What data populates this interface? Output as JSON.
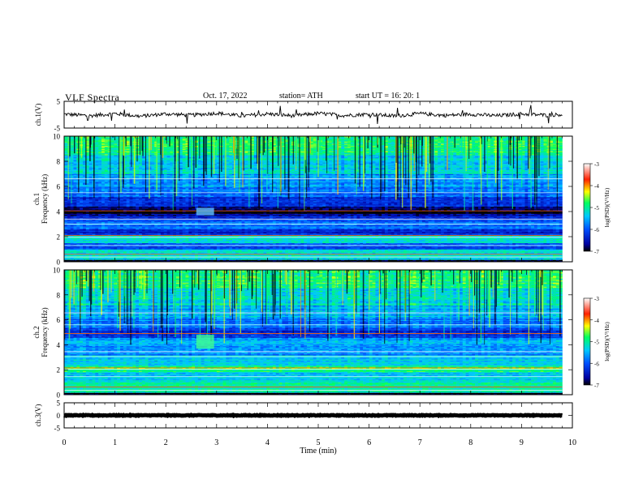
{
  "header": {
    "title": "VLF  Spectra",
    "date": "Oct. 17, 2022",
    "station": "station= ATH",
    "start": "start  UT  =    16: 20: 1"
  },
  "chart_data": [
    {
      "type": "line",
      "panel": "ch1-waveform",
      "ylabel": "ch.1(V)",
      "ylim": [
        -5,
        5
      ],
      "yticks": [
        "5",
        "-5"
      ],
      "xlim": [
        0,
        10
      ],
      "approx_level": 0,
      "sampled": [
        [
          0,
          0.2
        ],
        [
          0.5,
          -0.4
        ],
        [
          1,
          0.4
        ],
        [
          1.5,
          -0.6
        ],
        [
          2,
          0.3
        ],
        [
          2.5,
          -0.2
        ],
        [
          3,
          0.6
        ],
        [
          3.5,
          -0.5
        ],
        [
          4,
          0.3
        ],
        [
          4.5,
          -0.4
        ],
        [
          5,
          0.5
        ],
        [
          5.5,
          -0.3
        ],
        [
          6,
          0.2
        ],
        [
          6.5,
          -0.5
        ],
        [
          7,
          0.4
        ],
        [
          7.5,
          -0.3
        ],
        [
          8,
          0.2
        ],
        [
          8.5,
          -0.4
        ],
        [
          9,
          0.3
        ],
        [
          9.5,
          -0.2
        ],
        [
          9.8,
          0.1
        ]
      ]
    },
    {
      "type": "heatmap",
      "panel": "ch1-spectrogram",
      "ylabel": "ch.1\nFrequency  (kHz)",
      "yticks": [
        "0",
        "2",
        "4",
        "6",
        "8",
        "10"
      ],
      "ylim": [
        0,
        10
      ],
      "xlim": [
        0,
        10
      ],
      "data_extent_x": [
        0,
        9.8
      ],
      "colorbar": {
        "label": "log(PSD)(V²/Hz)",
        "ticks": [
          "-3",
          "-4",
          "-5",
          "-6",
          "-7"
        ],
        "range": [
          -7,
          -3
        ]
      },
      "bands": [
        {
          "f": [
            0,
            0.2
          ],
          "level": -7
        },
        {
          "f": [
            0.2,
            1.0
          ],
          "level": -5.2
        },
        {
          "f": [
            1.0,
            1.5
          ],
          "level": -6.0
        },
        {
          "f": [
            1.5,
            2.1
          ],
          "level": -5.3
        },
        {
          "f": [
            2.1,
            2.6
          ],
          "level": -6.3
        },
        {
          "f": [
            2.6,
            3.4
          ],
          "level": -5.9
        },
        {
          "f": [
            3.4,
            3.8
          ],
          "level": -6.5
        },
        {
          "f": [
            3.8,
            4.4
          ],
          "level": -6.9
        },
        {
          "f": [
            4.4,
            5.2
          ],
          "level": -6.3
        },
        {
          "f": [
            5.2,
            6.0
          ],
          "level": -5.9
        },
        {
          "f": [
            6.0,
            7.0
          ],
          "level": -5.6
        },
        {
          "f": [
            7.0,
            8.5
          ],
          "level": -5.3
        },
        {
          "f": [
            8.5,
            10.0
          ],
          "level": -4.9
        }
      ]
    },
    {
      "type": "heatmap",
      "panel": "ch2-spectrogram",
      "ylabel": "ch.2\nFrequency  (kHz)",
      "yticks": [
        "0",
        "2",
        "4",
        "6",
        "8",
        "10"
      ],
      "ylim": [
        0,
        10
      ],
      "xlim": [
        0,
        10
      ],
      "data_extent_x": [
        0,
        9.8
      ],
      "colorbar": {
        "label": "log(PSD)(V²/Hz)",
        "ticks": [
          "-3",
          "-4",
          "-5",
          "-6",
          "-7"
        ],
        "range": [
          -7,
          -3
        ]
      },
      "bands": [
        {
          "f": [
            0,
            0.2
          ],
          "level": -7
        },
        {
          "f": [
            0.2,
            1.2
          ],
          "level": -5.1
        },
        {
          "f": [
            1.2,
            1.8
          ],
          "level": -5.4
        },
        {
          "f": [
            1.8,
            2.3
          ],
          "level": -4.8
        },
        {
          "f": [
            2.3,
            3.2
          ],
          "level": -5.4
        },
        {
          "f": [
            3.2,
            3.8
          ],
          "level": -5.7
        },
        {
          "f": [
            3.8,
            4.6
          ],
          "level": -5.6
        },
        {
          "f": [
            4.6,
            5.3
          ],
          "level": -6.2
        },
        {
          "f": [
            5.3,
            6.2
          ],
          "level": -5.8
        },
        {
          "f": [
            6.2,
            7.2
          ],
          "level": -5.5
        },
        {
          "f": [
            7.2,
            8.5
          ],
          "level": -5.2
        },
        {
          "f": [
            8.5,
            10.0
          ],
          "level": -4.9
        }
      ]
    },
    {
      "type": "line",
      "panel": "ch3-waveform",
      "ylabel": "ch.3(V)",
      "ylim": [
        -5,
        5
      ],
      "yticks": [
        "5",
        "0",
        "-5"
      ],
      "xlim": [
        0,
        10
      ],
      "approx_level": 0,
      "sampled": [
        [
          0,
          0
        ],
        [
          9.8,
          0
        ]
      ]
    }
  ],
  "x_axis": {
    "label": "Time  (min)",
    "ticks": [
      "0",
      "1",
      "2",
      "3",
      "4",
      "5",
      "6",
      "7",
      "8",
      "9",
      "10"
    ]
  }
}
